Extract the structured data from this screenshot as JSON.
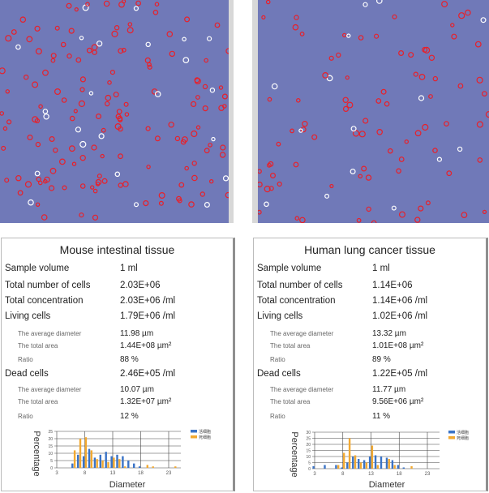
{
  "panels": [
    {
      "title": "Mouse intestinal tissue",
      "rows": [
        {
          "label": "Sample volume",
          "value": "1 ml"
        },
        {
          "label": "Total number of cells",
          "value": "2.03E+06"
        },
        {
          "label": "Total concentration",
          "value": "2.03E+06 /ml"
        },
        {
          "label": "Living cells",
          "value": "1.79E+06 /ml"
        },
        {
          "label": "The average diameter",
          "value": "11.98 µm",
          "sub": true
        },
        {
          "label": "The total area",
          "value": "1.44E+08 µm²",
          "sub": true
        },
        {
          "label": "Ratio",
          "value": "88 %",
          "sub": true
        },
        {
          "label": "Dead cells",
          "value": "2.46E+05 /ml"
        },
        {
          "label": "The average diameter",
          "value": "10.07 µm",
          "sub": true
        },
        {
          "label": "The total area",
          "value": "1.32E+07 µm²",
          "sub": true
        },
        {
          "label": "Ratio",
          "value": "12 %",
          "sub": true
        }
      ]
    },
    {
      "title": "Human lung cancer tissue",
      "rows": [
        {
          "label": "Sample volume",
          "value": "1 ml"
        },
        {
          "label": "Total number of cells",
          "value": "1.14E+06"
        },
        {
          "label": "Total concentration",
          "value": "1.14E+06 /ml"
        },
        {
          "label": "Living cells",
          "value": "1.02E+06 /ml"
        },
        {
          "label": "The average diameter",
          "value": "13.32 µm",
          "sub": true
        },
        {
          "label": "The total area",
          "value": "1.01E+08 µm²",
          "sub": true
        },
        {
          "label": "Ratio",
          "value": "89 %",
          "sub": true
        },
        {
          "label": "Dead cells",
          "value": "1.22E+05 /ml"
        },
        {
          "label": "The average diameter",
          "value": "11.77 µm",
          "sub": true
        },
        {
          "label": "The total area",
          "value": "9.56E+06 µm²",
          "sub": true
        },
        {
          "label": "Ratio",
          "value": "11 %",
          "sub": true
        }
      ]
    }
  ],
  "colors": {
    "living": "#3a73c6",
    "dead": "#f2a931",
    "image_bg": "#7079b8",
    "live_marker": "#e8202a",
    "dead_marker": "#ffffff"
  },
  "chart_data": [
    {
      "type": "bar",
      "xlabel": "Diameter",
      "ylabel": "Percentage",
      "xticks": [
        3,
        8,
        13,
        18,
        23
      ],
      "ylim": [
        0,
        25
      ],
      "yticks": [
        0,
        5,
        10,
        15,
        20,
        25
      ],
      "grid": true,
      "legend": "right",
      "series": [
        {
          "name": "活细胞",
          "x": [
            6,
            7,
            8,
            9,
            10,
            11,
            12,
            13,
            14,
            15,
            16,
            17,
            18
          ],
          "values": [
            3,
            9,
            8,
            13,
            7,
            9,
            11,
            8,
            9,
            8,
            5,
            3,
            1
          ]
        },
        {
          "name": "死细胞",
          "x": [
            6,
            7,
            8,
            9,
            10,
            11,
            12,
            13,
            14,
            15,
            19,
            20,
            24
          ],
          "values": [
            12,
            20,
            21,
            12,
            6,
            5,
            4,
            7,
            6,
            1,
            2,
            1,
            1
          ]
        }
      ]
    },
    {
      "type": "bar",
      "xlabel": "Diameter",
      "ylabel": "Percentage",
      "xticks": [
        3,
        8,
        13,
        18,
        23
      ],
      "ylim": [
        0,
        30
      ],
      "yticks": [
        0,
        5,
        10,
        15,
        20,
        25,
        30
      ],
      "grid": true,
      "legend": "right",
      "series": [
        {
          "name": "活细胞",
          "x": [
            3,
            5,
            7,
            8,
            9,
            10,
            11,
            12,
            13,
            14,
            15,
            16,
            17,
            18,
            19
          ],
          "values": [
            2,
            3,
            3,
            1,
            5,
            10,
            8,
            7,
            10,
            11,
            10,
            9,
            7,
            3,
            1
          ]
        },
        {
          "name": "死细胞",
          "x": [
            7,
            8,
            9,
            10,
            11,
            12,
            13,
            14,
            16,
            17,
            20
          ],
          "values": [
            3,
            13,
            25,
            11,
            5,
            5,
            19,
            3,
            8,
            3,
            2
          ]
        }
      ]
    }
  ]
}
